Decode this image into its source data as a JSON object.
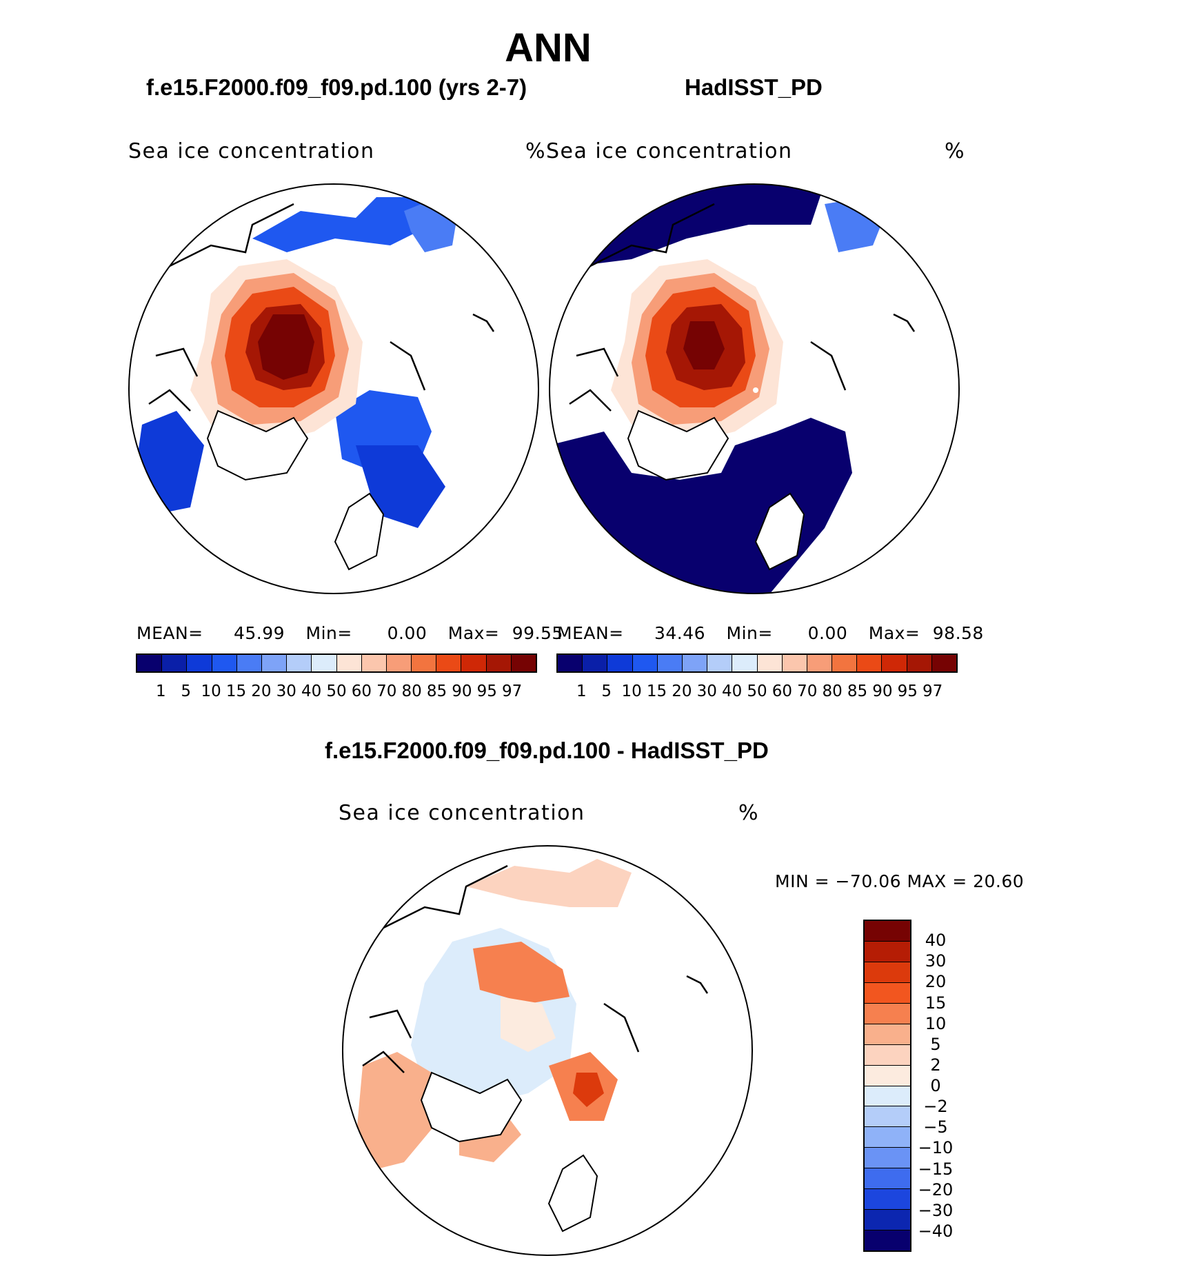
{
  "figure": {
    "title": "ANN",
    "panels": [
      {
        "heading": "f.e15.F2000.f09_f09.pd.100 (yrs 2-7)",
        "variable": "Sea ice concentration",
        "units": "%",
        "stats": {
          "mean_label": "MEAN=",
          "mean": "45.99",
          "min_label": "Min=",
          "min": "0.00",
          "max_label": "Max=",
          "max": "99.55"
        }
      },
      {
        "heading": "HadISST_PD",
        "variable": "Sea ice concentration",
        "units": "%",
        "stats": {
          "mean_label": "MEAN=",
          "mean": "34.46",
          "min_label": "Min=",
          "min": "0.00",
          "max_label": "Max=",
          "max": "98.58"
        }
      }
    ],
    "difference": {
      "heading": "f.e15.F2000.f09_f09.pd.100 - HadISST_PD",
      "variable": "Sea ice concentration",
      "units": "%",
      "minmax": "MIN = −70.06 MAX =   20.60"
    }
  },
  "chart_data": [
    {
      "type": "heatmap",
      "projection": "north-polar-stereographic",
      "title": "f.e15.F2000.f09_f09.pd.100 (yrs 2-7)",
      "variable": "Sea ice concentration (%)",
      "mean": 45.99,
      "min": 0.0,
      "max": 99.55,
      "levels": [
        "1",
        "5",
        "10",
        "15",
        "20",
        "30",
        "40",
        "50",
        "60",
        "70",
        "80",
        "85",
        "90",
        "95",
        "97"
      ],
      "colors": [
        "#08006e",
        "#0a1fa8",
        "#0e3ad8",
        "#1f58f0",
        "#4a7cf5",
        "#7ea3f7",
        "#b4cdf9",
        "#dcecfb",
        "#fde4d6",
        "#fbc6ad",
        "#f79d78",
        "#f2743f",
        "#ea4a16",
        "#cf2806",
        "#a51705",
        "#760303"
      ]
    },
    {
      "type": "heatmap",
      "projection": "north-polar-stereographic",
      "title": "HadISST_PD",
      "variable": "Sea ice concentration (%)",
      "mean": 34.46,
      "min": 0.0,
      "max": 98.58,
      "levels": [
        "1",
        "5",
        "10",
        "15",
        "20",
        "30",
        "40",
        "50",
        "60",
        "70",
        "80",
        "85",
        "90",
        "95",
        "97"
      ],
      "colors": [
        "#08006e",
        "#0a1fa8",
        "#0e3ad8",
        "#1f58f0",
        "#4a7cf5",
        "#7ea3f7",
        "#b4cdf9",
        "#dcecfb",
        "#fde4d6",
        "#fbc6ad",
        "#f79d78",
        "#f2743f",
        "#ea4a16",
        "#cf2806",
        "#a51705",
        "#760303"
      ]
    },
    {
      "type": "heatmap",
      "projection": "north-polar-stereographic",
      "title": "f.e15.F2000.f09_f09.pd.100 - HadISST_PD",
      "variable": "Sea ice concentration difference (%)",
      "min": -70.06,
      "max": 20.6,
      "levels": [
        "40",
        "30",
        "20",
        "15",
        "10",
        "5",
        "2",
        "0",
        "−2",
        "−5",
        "−10",
        "−15",
        "−20",
        "−30",
        "−40"
      ],
      "colors": [
        "#760303",
        "#b51d05",
        "#dc3a0c",
        "#f2561f",
        "#f6804f",
        "#f9b08c",
        "#fcd3bf",
        "#fcebdf",
        "#dcecfb",
        "#b4cdf9",
        "#8fb2f8",
        "#6a93f5",
        "#3e6cef",
        "#1c46de",
        "#0c26b0",
        "#08006e"
      ]
    }
  ]
}
